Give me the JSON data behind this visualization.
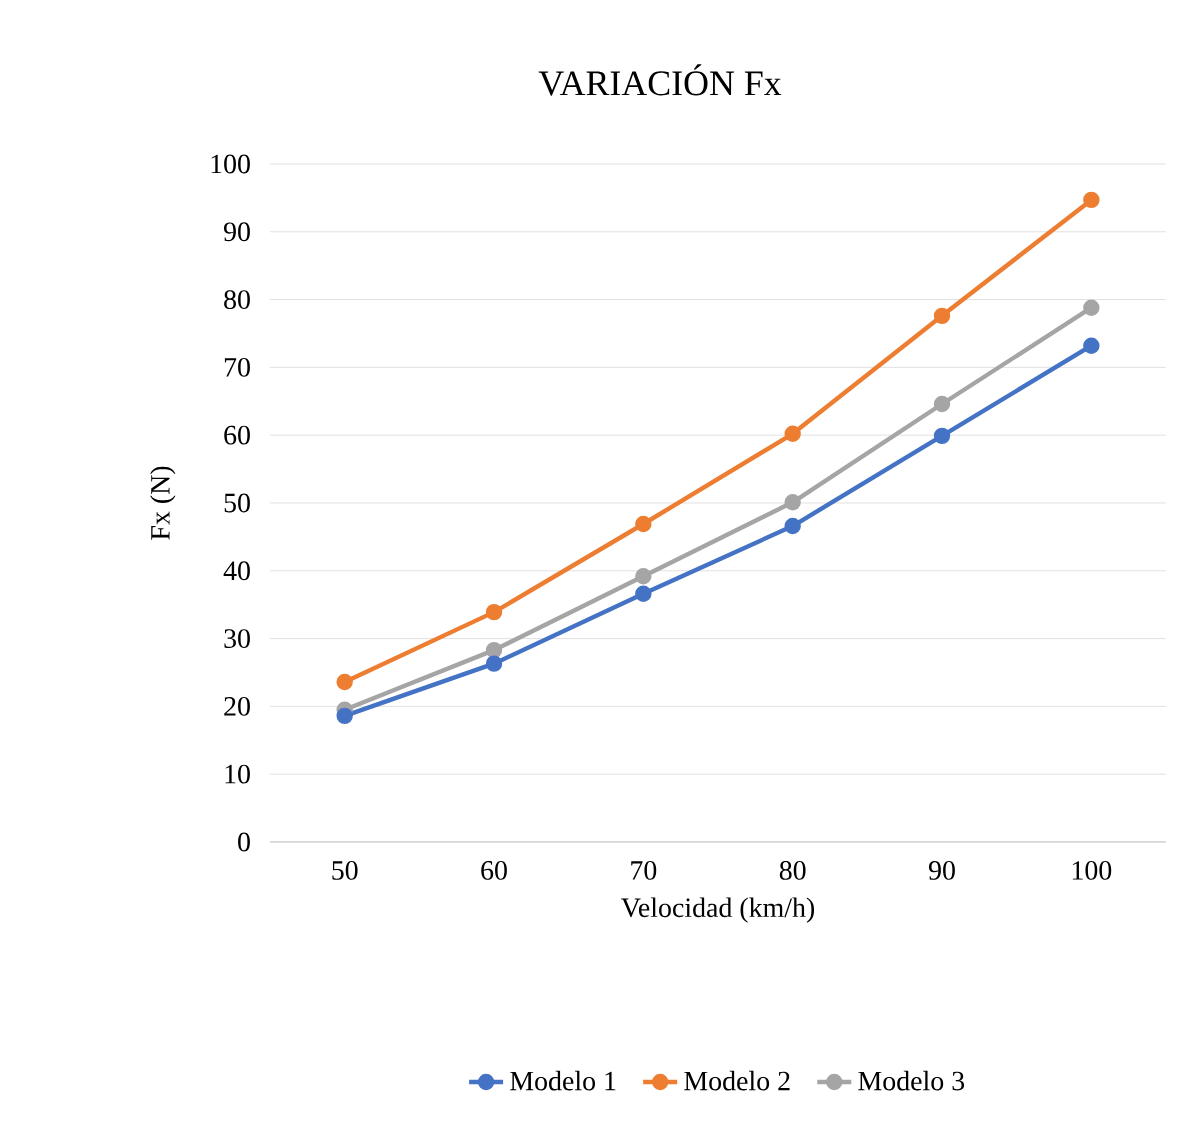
{
  "chart_data": {
    "type": "line",
    "title": "VARIACIÓN  Fx",
    "xlabel": "Velocidad  (km/h)",
    "ylabel": "Fx (N)",
    "categories": [
      "50",
      "60",
      "70",
      "80",
      "90",
      "100"
    ],
    "series": [
      {
        "name": "Modelo 1",
        "color": "#4472c4",
        "values": [
          18.6,
          26.3,
          36.6,
          46.6,
          59.9,
          73.2
        ]
      },
      {
        "name": "Modelo 2",
        "color": "#ed7d31",
        "values": [
          23.6,
          33.9,
          46.9,
          60.2,
          77.6,
          94.7
        ]
      },
      {
        "name": "Modelo 3",
        "color": "#a5a5a5",
        "values": [
          19.5,
          28.3,
          39.2,
          50.1,
          64.6,
          78.8
        ]
      }
    ],
    "ylim": [
      0,
      100
    ],
    "yticks": [
      0,
      10,
      20,
      30,
      40,
      50,
      60,
      70,
      80,
      90,
      100
    ],
    "grid": "y",
    "legend": "bottom",
    "marker": "circle",
    "line_style": "solid"
  }
}
